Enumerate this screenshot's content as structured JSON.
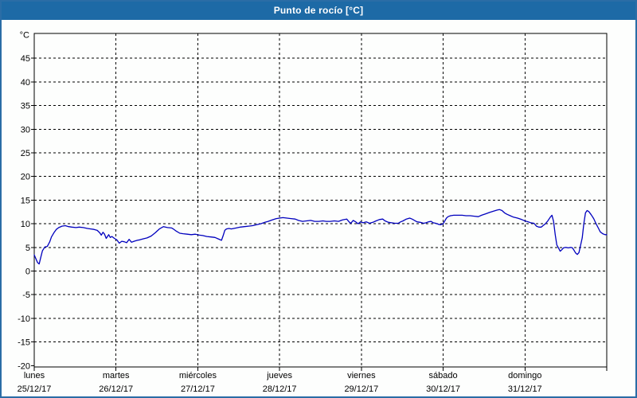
{
  "window": {
    "title": "Punto de rocío [°C]",
    "title_bar_color": "#1D6AA6",
    "border_color": "#2A6DA6",
    "background_color": "#FDFEFD"
  },
  "chart_data": {
    "type": "line",
    "title": "Punto de rocío [°C]",
    "grid": true,
    "legend": "none",
    "y_axis": {
      "unit_label": "°C",
      "ylim": [
        -20,
        50
      ],
      "tick_step": 5,
      "ticks": [
        45,
        40,
        35,
        30,
        25,
        20,
        15,
        10,
        5,
        0,
        -5,
        -10,
        -15,
        -20
      ],
      "gridline_color": "#000000"
    },
    "x_axis": {
      "days": [
        {
          "name": "lunes",
          "date": "25/12/17"
        },
        {
          "name": "martes",
          "date": "26/12/17"
        },
        {
          "name": "miércoles",
          "date": "27/12/17"
        },
        {
          "name": "jueves",
          "date": "28/12/17"
        },
        {
          "name": "viernes",
          "date": "29/12/17"
        },
        {
          "name": "sábado",
          "date": "30/12/17"
        },
        {
          "name": "domingo",
          "date": "31/12/17"
        }
      ],
      "span_days": 7
    },
    "series": [
      {
        "name": "Punto de rocío",
        "color": "#0000BE",
        "points": [
          [
            0.0,
            3.4
          ],
          [
            0.02,
            2.6
          ],
          [
            0.04,
            1.8
          ],
          [
            0.06,
            1.5
          ],
          [
            0.08,
            2.9
          ],
          [
            0.1,
            4.3
          ],
          [
            0.13,
            5.1
          ],
          [
            0.16,
            5.2
          ],
          [
            0.19,
            6.2
          ],
          [
            0.21,
            7.2
          ],
          [
            0.24,
            8.1
          ],
          [
            0.27,
            8.8
          ],
          [
            0.3,
            9.2
          ],
          [
            0.34,
            9.5
          ],
          [
            0.38,
            9.6
          ],
          [
            0.42,
            9.4
          ],
          [
            0.46,
            9.3
          ],
          [
            0.51,
            9.2
          ],
          [
            0.55,
            9.3
          ],
          [
            0.6,
            9.2
          ],
          [
            0.65,
            9.0
          ],
          [
            0.69,
            8.9
          ],
          [
            0.73,
            8.8
          ],
          [
            0.77,
            8.6
          ],
          [
            0.8,
            8.1
          ],
          [
            0.82,
            7.6
          ],
          [
            0.84,
            8.2
          ],
          [
            0.86,
            7.8
          ],
          [
            0.88,
            6.9
          ],
          [
            0.91,
            7.7
          ],
          [
            0.93,
            7.1
          ],
          [
            0.95,
            7.3
          ],
          [
            0.98,
            6.9
          ],
          [
            1.01,
            6.6
          ],
          [
            1.04,
            5.9
          ],
          [
            1.07,
            6.3
          ],
          [
            1.1,
            6.2
          ],
          [
            1.13,
            6.0
          ],
          [
            1.16,
            6.7
          ],
          [
            1.19,
            6.1
          ],
          [
            1.22,
            6.3
          ],
          [
            1.26,
            6.5
          ],
          [
            1.29,
            6.6
          ],
          [
            1.33,
            6.8
          ],
          [
            1.38,
            7.0
          ],
          [
            1.43,
            7.4
          ],
          [
            1.48,
            8.1
          ],
          [
            1.53,
            8.9
          ],
          [
            1.58,
            9.4
          ],
          [
            1.63,
            9.2
          ],
          [
            1.68,
            9.1
          ],
          [
            1.7,
            8.9
          ],
          [
            1.74,
            8.4
          ],
          [
            1.78,
            8.0
          ],
          [
            1.82,
            7.9
          ],
          [
            1.87,
            7.8
          ],
          [
            1.92,
            7.7
          ],
          [
            1.97,
            7.8
          ],
          [
            2.02,
            7.6
          ],
          [
            2.06,
            7.5
          ],
          [
            2.11,
            7.3
          ],
          [
            2.16,
            7.2
          ],
          [
            2.21,
            7.1
          ],
          [
            2.25,
            6.8
          ],
          [
            2.29,
            6.5
          ],
          [
            2.31,
            7.5
          ],
          [
            2.33,
            8.6
          ],
          [
            2.35,
            8.9
          ],
          [
            2.38,
            9.0
          ],
          [
            2.41,
            8.9
          ],
          [
            2.44,
            9.0
          ],
          [
            2.47,
            9.1
          ],
          [
            2.52,
            9.3
          ],
          [
            2.57,
            9.4
          ],
          [
            2.62,
            9.5
          ],
          [
            2.67,
            9.6
          ],
          [
            2.72,
            9.8
          ],
          [
            2.77,
            10.0
          ],
          [
            2.82,
            10.3
          ],
          [
            2.86,
            10.5
          ],
          [
            2.91,
            10.8
          ],
          [
            2.96,
            11.1
          ],
          [
            3.0,
            11.2
          ],
          [
            3.04,
            11.3
          ],
          [
            3.09,
            11.2
          ],
          [
            3.14,
            11.1
          ],
          [
            3.19,
            11.0
          ],
          [
            3.23,
            10.7
          ],
          [
            3.28,
            10.5
          ],
          [
            3.33,
            10.6
          ],
          [
            3.38,
            10.7
          ],
          [
            3.43,
            10.5
          ],
          [
            3.48,
            10.5
          ],
          [
            3.53,
            10.6
          ],
          [
            3.57,
            10.5
          ],
          [
            3.62,
            10.5
          ],
          [
            3.67,
            10.6
          ],
          [
            3.72,
            10.5
          ],
          [
            3.77,
            10.8
          ],
          [
            3.82,
            11.0
          ],
          [
            3.85,
            10.4
          ],
          [
            3.87,
            10.1
          ],
          [
            3.9,
            10.7
          ],
          [
            3.93,
            10.4
          ],
          [
            3.96,
            10.0
          ],
          [
            3.99,
            10.4
          ],
          [
            4.02,
            10.2
          ],
          [
            4.06,
            10.4
          ],
          [
            4.1,
            10.1
          ],
          [
            4.14,
            10.3
          ],
          [
            4.18,
            10.6
          ],
          [
            4.22,
            10.9
          ],
          [
            4.26,
            11.0
          ],
          [
            4.29,
            10.6
          ],
          [
            4.33,
            10.3
          ],
          [
            4.37,
            10.2
          ],
          [
            4.41,
            10.1
          ],
          [
            4.45,
            10.1
          ],
          [
            4.48,
            10.4
          ],
          [
            4.51,
            10.6
          ],
          [
            4.55,
            11.0
          ],
          [
            4.59,
            11.2
          ],
          [
            4.62,
            11.0
          ],
          [
            4.65,
            10.7
          ],
          [
            4.68,
            10.4
          ],
          [
            4.72,
            10.3
          ],
          [
            4.76,
            10.1
          ],
          [
            4.79,
            10.2
          ],
          [
            4.82,
            10.4
          ],
          [
            4.85,
            10.5
          ],
          [
            4.88,
            10.2
          ],
          [
            4.91,
            10.1
          ],
          [
            4.94,
            9.9
          ],
          [
            4.97,
            9.8
          ],
          [
            5.0,
            10.0
          ],
          [
            5.02,
            10.6
          ],
          [
            5.04,
            11.2
          ],
          [
            5.06,
            11.5
          ],
          [
            5.09,
            11.7
          ],
          [
            5.13,
            11.8
          ],
          [
            5.18,
            11.8
          ],
          [
            5.23,
            11.8
          ],
          [
            5.28,
            11.7
          ],
          [
            5.33,
            11.7
          ],
          [
            5.38,
            11.6
          ],
          [
            5.43,
            11.5
          ],
          [
            5.47,
            11.8
          ],
          [
            5.52,
            12.1
          ],
          [
            5.57,
            12.4
          ],
          [
            5.62,
            12.7
          ],
          [
            5.66,
            12.9
          ],
          [
            5.69,
            13.0
          ],
          [
            5.72,
            12.8
          ],
          [
            5.75,
            12.3
          ],
          [
            5.78,
            12.0
          ],
          [
            5.82,
            11.7
          ],
          [
            5.86,
            11.4
          ],
          [
            5.91,
            11.2
          ],
          [
            5.96,
            10.9
          ],
          [
            6.0,
            10.6
          ],
          [
            6.04,
            10.4
          ],
          [
            6.07,
            10.2
          ],
          [
            6.11,
            10.1
          ],
          [
            6.14,
            9.5
          ],
          [
            6.17,
            9.3
          ],
          [
            6.2,
            9.3
          ],
          [
            6.22,
            9.6
          ],
          [
            6.25,
            10.0
          ],
          [
            6.28,
            10.6
          ],
          [
            6.31,
            11.4
          ],
          [
            6.33,
            11.8
          ],
          [
            6.35,
            10.5
          ],
          [
            6.37,
            7.7
          ],
          [
            6.39,
            5.5
          ],
          [
            6.41,
            4.9
          ],
          [
            6.43,
            4.2
          ],
          [
            6.45,
            4.5
          ],
          [
            6.47,
            4.9
          ],
          [
            6.5,
            5.0
          ],
          [
            6.53,
            4.9
          ],
          [
            6.56,
            5.0
          ],
          [
            6.58,
            4.9
          ],
          [
            6.6,
            4.4
          ],
          [
            6.62,
            3.8
          ],
          [
            6.64,
            3.5
          ],
          [
            6.66,
            3.9
          ],
          [
            6.68,
            5.4
          ],
          [
            6.7,
            7.0
          ],
          [
            6.72,
            10.0
          ],
          [
            6.74,
            12.3
          ],
          [
            6.76,
            12.8
          ],
          [
            6.78,
            12.6
          ],
          [
            6.81,
            11.9
          ],
          [
            6.84,
            11.1
          ],
          [
            6.87,
            10.0
          ],
          [
            6.9,
            9.0
          ],
          [
            6.92,
            8.3
          ],
          [
            6.95,
            7.9
          ],
          [
            6.98,
            7.7
          ],
          [
            7.0,
            7.7
          ]
        ]
      }
    ]
  }
}
